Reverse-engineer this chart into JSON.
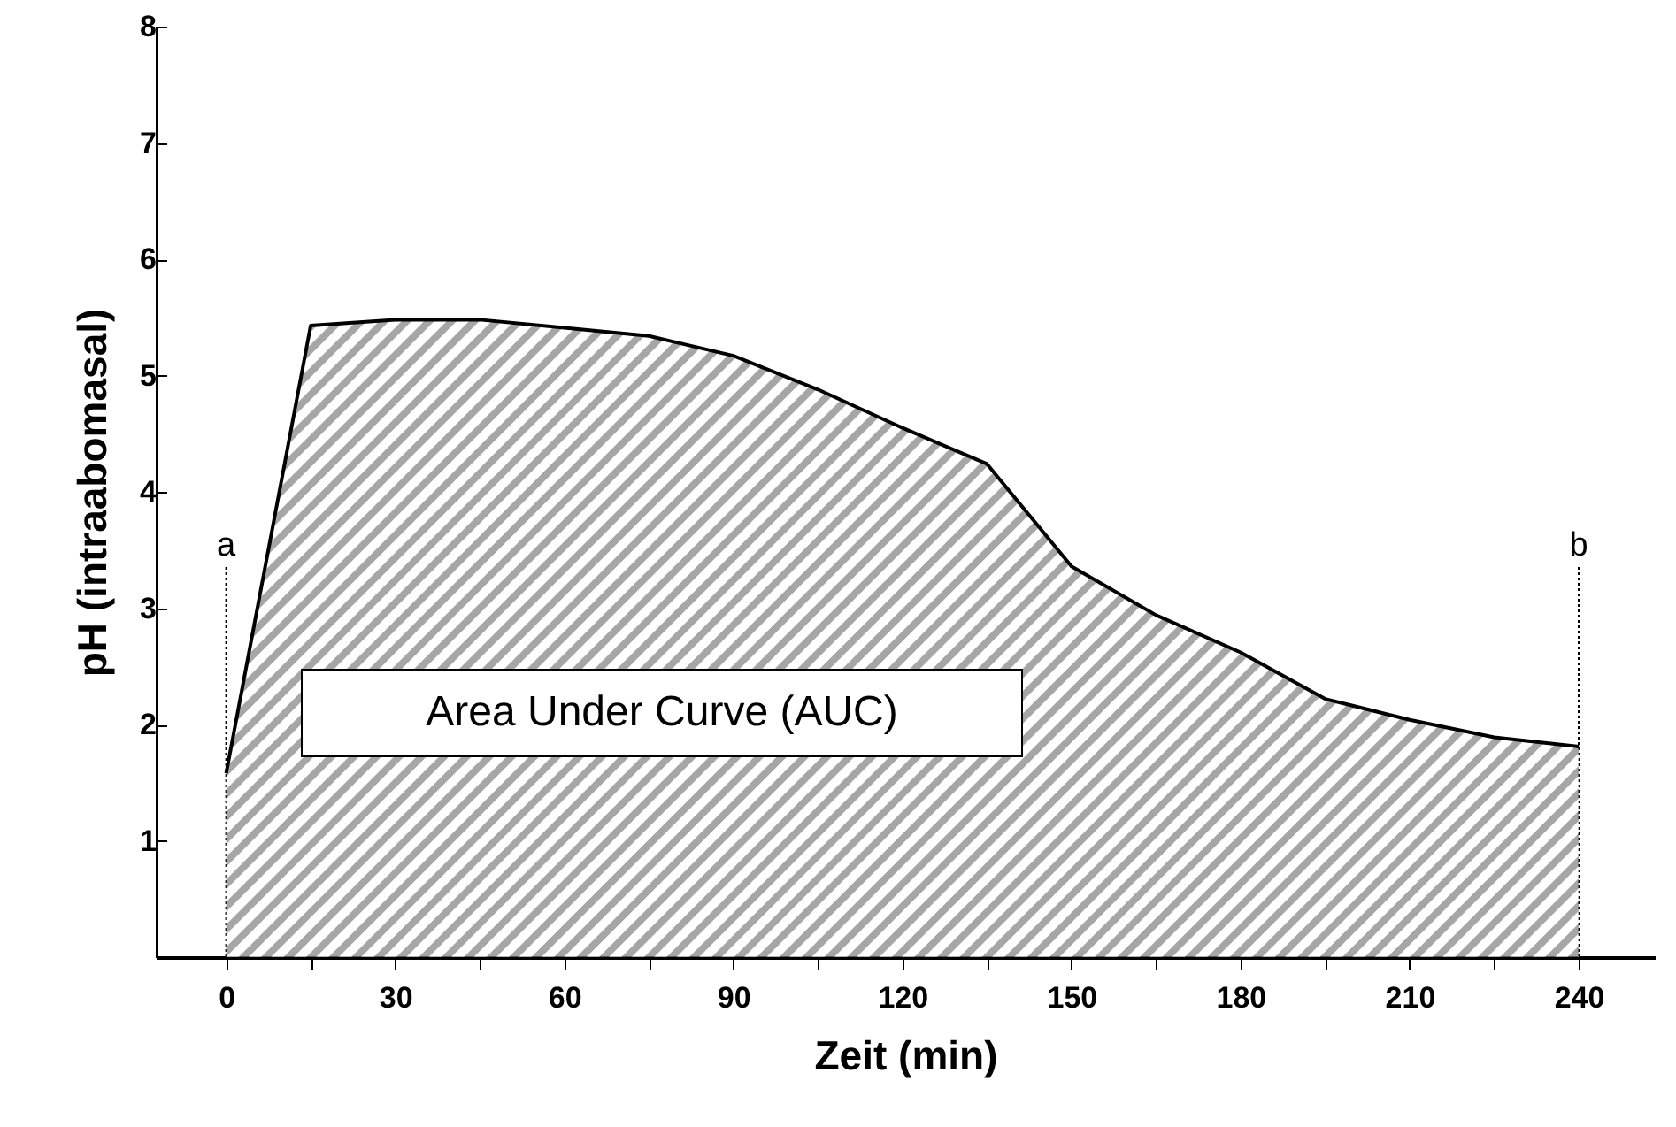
{
  "chart_data": {
    "type": "area",
    "xlabel": "Zeit (min)",
    "ylabel": "pH (intraabomasal)",
    "x": [
      0,
      15,
      30,
      45,
      60,
      75,
      90,
      105,
      120,
      135,
      150,
      165,
      180,
      195,
      210,
      225,
      240
    ],
    "series": [
      {
        "color": "#808080",
        "values": [
          1.58,
          5.43,
          5.48,
          5.48,
          5.41,
          5.34,
          5.17,
          4.88,
          4.55,
          4.24,
          3.36,
          2.94,
          2.62,
          2.22,
          2.04,
          1.89,
          1.81
        ]
      }
    ],
    "xlim": [
      -12.5,
      253.5
    ],
    "ylim": [
      0,
      8
    ],
    "xticks": [
      0,
      {
        "value": 15,
        "label": null
      },
      30,
      {
        "value": 45,
        "label": null
      },
      60,
      {
        "value": 75,
        "label": null
      },
      90,
      {
        "value": 105,
        "label": null
      },
      120,
      {
        "value": 135,
        "label": null
      },
      150,
      {
        "value": 165,
        "label": null
      },
      180,
      {
        "value": 195,
        "label": null
      },
      210,
      {
        "value": 225,
        "label": null
      },
      240
    ],
    "yticks": [
      {
        "value": 0,
        "label": null
      },
      1,
      2,
      3,
      4,
      5,
      6,
      7,
      8
    ],
    "ref_lines": [
      {
        "axis": "x",
        "value": 0,
        "label": "a",
        "line_style": "dotted"
      },
      {
        "axis": "x",
        "value": 240,
        "label": "b",
        "line_style": "dotted"
      }
    ],
    "annotations": [
      "Area Under Curve (AUC)"
    ],
    "grid": false
  }
}
